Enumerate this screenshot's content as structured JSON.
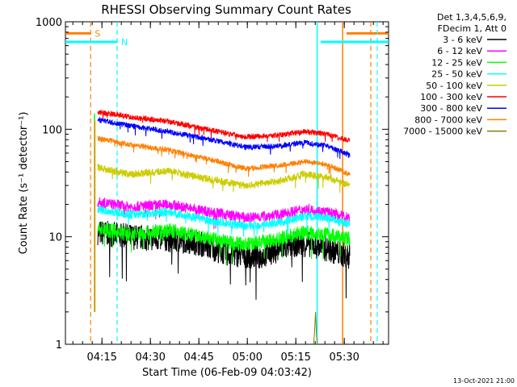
{
  "chart_data": {
    "type": "line",
    "title": "RHESSI Observing Summary Count Rates",
    "xlabel": "Start Time (06-Feb-09 04:03:42)",
    "ylabel": "Count Rate (s⁻¹ detector⁻¹)",
    "yscale": "log",
    "ylim": [
      1,
      1000
    ],
    "xlim_minutes": [
      0,
      100
    ],
    "y_ticks": [
      "1",
      "10",
      "100",
      "1000"
    ],
    "x_ticks": [
      {
        "label": "04:15",
        "t": 11.3
      },
      {
        "label": "04:30",
        "t": 26.3
      },
      {
        "label": "04:45",
        "t": 41.3
      },
      {
        "label": "05:00",
        "t": 56.3
      },
      {
        "label": "05:15",
        "t": 71.3
      },
      {
        "label": "05:30",
        "t": 86.3
      }
    ],
    "legend_header": [
      "Det 1,3,4,5,6,9,",
      "FDecim 1, Att 0"
    ],
    "legend_position": "right",
    "x_minor_step_minutes": 3,
    "data_start_t": 10.0,
    "data_end_t": 88.0,
    "series": [
      {
        "name": "3 - 6 keV",
        "color": "#000000",
        "noise": 0.12,
        "values": [
          {
            "t": 10,
            "y": 11
          },
          {
            "t": 20,
            "y": 10
          },
          {
            "t": 30,
            "y": 9.5
          },
          {
            "t": 40,
            "y": 9
          },
          {
            "t": 50,
            "y": 7
          },
          {
            "t": 60,
            "y": 6.5
          },
          {
            "t": 70,
            "y": 8.5
          },
          {
            "t": 76,
            "y": 8.5
          },
          {
            "t": 82,
            "y": 7.5
          },
          {
            "t": 88,
            "y": 6.5
          }
        ]
      },
      {
        "name": "6 - 12 keV",
        "color": "#ff00ff",
        "noise": 0.05,
        "values": [
          {
            "t": 10,
            "y": 21
          },
          {
            "t": 20,
            "y": 19
          },
          {
            "t": 32,
            "y": 20
          },
          {
            "t": 45,
            "y": 17
          },
          {
            "t": 56,
            "y": 15
          },
          {
            "t": 66,
            "y": 16
          },
          {
            "t": 74,
            "y": 18
          },
          {
            "t": 81,
            "y": 17
          },
          {
            "t": 88,
            "y": 15
          }
        ]
      },
      {
        "name": "12 - 25 keV",
        "color": "#00ff00",
        "noise": 0.07,
        "values": [
          {
            "t": 10,
            "y": 12
          },
          {
            "t": 20,
            "y": 10.5
          },
          {
            "t": 32,
            "y": 11.5
          },
          {
            "t": 45,
            "y": 9.5
          },
          {
            "t": 56,
            "y": 8.5
          },
          {
            "t": 66,
            "y": 9.5
          },
          {
            "t": 74,
            "y": 11
          },
          {
            "t": 81,
            "y": 10.5
          },
          {
            "t": 88,
            "y": 9.5
          }
        ]
      },
      {
        "name": "25 - 50 keV",
        "color": "#00ffff",
        "noise": 0.04,
        "values": [
          {
            "t": 10,
            "y": 18
          },
          {
            "t": 20,
            "y": 16
          },
          {
            "t": 32,
            "y": 17
          },
          {
            "t": 45,
            "y": 14
          },
          {
            "t": 56,
            "y": 12.5
          },
          {
            "t": 66,
            "y": 13.5
          },
          {
            "t": 74,
            "y": 15.5
          },
          {
            "t": 81,
            "y": 15
          },
          {
            "t": 88,
            "y": 13
          }
        ]
      },
      {
        "name": "50 - 100 keV",
        "color": "#cccc00",
        "noise": 0.035,
        "values": [
          {
            "t": 10,
            "y": 44
          },
          {
            "t": 20,
            "y": 38
          },
          {
            "t": 32,
            "y": 41
          },
          {
            "t": 45,
            "y": 34
          },
          {
            "t": 56,
            "y": 30
          },
          {
            "t": 66,
            "y": 33
          },
          {
            "t": 74,
            "y": 38
          },
          {
            "t": 81,
            "y": 36
          },
          {
            "t": 88,
            "y": 30
          }
        ]
      },
      {
        "name": "100 - 300 keV",
        "color": "#ff0000",
        "noise": 0.025,
        "values": [
          {
            "t": 10,
            "y": 145
          },
          {
            "t": 20,
            "y": 130
          },
          {
            "t": 32,
            "y": 118
          },
          {
            "t": 45,
            "y": 98
          },
          {
            "t": 56,
            "y": 85
          },
          {
            "t": 66,
            "y": 88
          },
          {
            "t": 74,
            "y": 95
          },
          {
            "t": 81,
            "y": 90
          },
          {
            "t": 88,
            "y": 78
          }
        ]
      },
      {
        "name": "300 - 800 keV",
        "color": "#0000ff",
        "noise": 0.025,
        "values": [
          {
            "t": 10,
            "y": 122
          },
          {
            "t": 20,
            "y": 108
          },
          {
            "t": 32,
            "y": 95
          },
          {
            "t": 45,
            "y": 80
          },
          {
            "t": 56,
            "y": 68
          },
          {
            "t": 66,
            "y": 70
          },
          {
            "t": 74,
            "y": 75
          },
          {
            "t": 81,
            "y": 70
          },
          {
            "t": 88,
            "y": 57
          }
        ]
      },
      {
        "name": "800 - 7000 keV",
        "color": "#ff8000",
        "noise": 0.025,
        "values": [
          {
            "t": 10,
            "y": 82
          },
          {
            "t": 20,
            "y": 72
          },
          {
            "t": 32,
            "y": 64
          },
          {
            "t": 45,
            "y": 52
          },
          {
            "t": 56,
            "y": 43
          },
          {
            "t": 66,
            "y": 46
          },
          {
            "t": 74,
            "y": 50
          },
          {
            "t": 81,
            "y": 47
          },
          {
            "t": 88,
            "y": 38
          }
        ]
      },
      {
        "name": "7000 - 15000 keV",
        "color": "#808000",
        "noise": 0.0,
        "values": [
          {
            "t": 76.8,
            "y": 1
          },
          {
            "t": 77.1,
            "y": 1.3
          },
          {
            "t": 77.4,
            "y": 2
          },
          {
            "t": 77.7,
            "y": 1.2
          },
          {
            "t": 78.0,
            "y": 1
          }
        ]
      }
    ],
    "flags": [
      {
        "label": "S",
        "color": "#ff8000",
        "dashed_t": [
          7.8,
          94.5
        ],
        "solid_t": 85.8,
        "bar_y": 780,
        "bar_t": [
          [
            0,
            7.8
          ],
          [
            87.0,
            100
          ]
        ]
      },
      {
        "label": "N",
        "color": "#00ffff",
        "dashed_t": [
          16.0,
          96.5
        ],
        "solid_t": 77.9,
        "bar_y": 650,
        "bar_t": [
          [
            0,
            16.0
          ],
          [
            79.0,
            100
          ]
        ]
      }
    ],
    "spikes": [
      {
        "t": 9.0,
        "y0": 2,
        "y1": 140,
        "color": "#00ff00"
      },
      {
        "t": 9.1,
        "y0": 2,
        "y1": 120,
        "color": "#ff8000"
      }
    ]
  },
  "timestamp": "13-Oct-2021 21:00"
}
